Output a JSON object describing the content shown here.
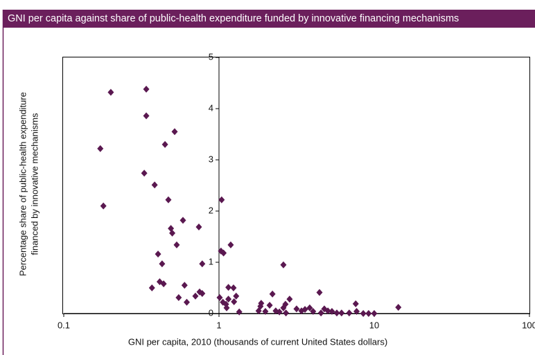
{
  "chart_data": {
    "type": "scatter",
    "title": "GNI per capita against share of public-health expenditure funded by innovative financing mechanisms",
    "xlabel": "GNI per capita, 2010 (thousands of current United States dollars)",
    "ylabel": [
      "Percentage share of public-health expenditure",
      "financed by innovative mechanisms"
    ],
    "xscale": "log",
    "xlim": [
      0.1,
      100
    ],
    "xticks": [
      0.1,
      1,
      10,
      100
    ],
    "ylim": [
      0,
      5
    ],
    "yticks": [
      0,
      1,
      2,
      3,
      4,
      5
    ],
    "y_axis_at": 1,
    "color": "#5a1850",
    "x": [
      0.172,
      0.18,
      0.201,
      0.34,
      0.34,
      0.33,
      0.385,
      0.449,
      0.518,
      0.472,
      0.49,
      0.5,
      0.586,
      0.534,
      0.405,
      0.43,
      0.37,
      0.415,
      0.44,
      0.55,
      0.6,
      0.62,
      0.705,
      0.742,
      0.78,
      0.75,
      0.78,
      1.04,
      1.03,
      1.07,
      1.19,
      1.01,
      1.06,
      1.11,
      1.15,
      1.24,
      1.15,
      1.29,
      1.25,
      1.12,
      1.35,
      1.87,
      1.85,
      1.8,
      1.99,
      2.12,
      2.21,
      2.32,
      2.45,
      2.6,
      2.6,
      2.68,
      2.85,
      2.7,
      3.16,
      3.4,
      3.58,
      3.84,
      4.04,
      4.44,
      4.54,
      4.77,
      5.03,
      5.34,
      5.74,
      6.16,
      6.9,
      7.6,
      7.7,
      8.5,
      9.2,
      10,
      14.3
    ],
    "values": [
      3.22,
      2.1,
      4.32,
      4.38,
      3.86,
      2.74,
      2.51,
      3.3,
      3.55,
      2.22,
      1.66,
      1.57,
      1.82,
      1.34,
      1.16,
      0.97,
      0.5,
      0.62,
      0.58,
      0.31,
      0.55,
      0.22,
      0.34,
      1.69,
      0.97,
      0.42,
      0.39,
      2.22,
      1.22,
      1.18,
      1.34,
      0.31,
      0.22,
      0.18,
      0.51,
      0.5,
      0.28,
      0.34,
      0.23,
      0.11,
      0.03,
      0.2,
      0.14,
      0.05,
      0.04,
      0.16,
      0.38,
      0.05,
      0.03,
      0.95,
      0.11,
      0.18,
      0.28,
      0.01,
      0.09,
      0.05,
      0.08,
      0.11,
      0.04,
      0.41,
      0.01,
      0.09,
      0.05,
      0.04,
      0.01,
      0.01,
      0.01,
      0.19,
      0.04,
      0,
      0,
      0,
      0.12
    ]
  }
}
